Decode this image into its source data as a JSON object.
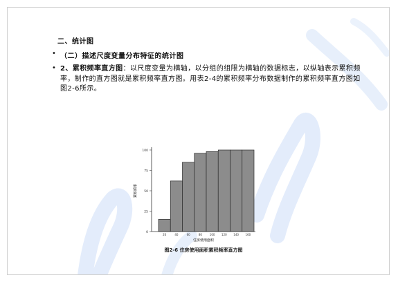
{
  "heading": "二、统计图",
  "bullets": [
    {
      "text": "（二）描述尺度变量分布特征的统计图"
    },
    {
      "lead": "2、累积频率直方图",
      "body": "：以尺度变量为横轴，以分组的组限为横轴的数据标志，以纵轴表示累积频率，制作的直方图就是累积频率直方图。用表2-4的累积频率分布数据制作的累积频率直方图如图2-6所示。"
    }
  ],
  "figure": {
    "caption": "图2-6  住房使用面积累积频率直方图"
  },
  "chart_data": {
    "type": "bar",
    "title": "",
    "xlabel": "住房使用面积",
    "ylabel": "累积频率",
    "categories": [
      "20",
      "40",
      "60",
      "80",
      "100",
      "120",
      "140",
      "160"
    ],
    "values": [
      15,
      62,
      85,
      96,
      98,
      100,
      100,
      100
    ],
    "ylim": [
      0,
      100
    ],
    "y_ticks": [
      "0",
      "25",
      "50",
      "75",
      "100"
    ],
    "bar_color": "#8c8c8c"
  },
  "colors": {
    "watermark": "#3a7be0",
    "border": "#cfcfcf"
  }
}
